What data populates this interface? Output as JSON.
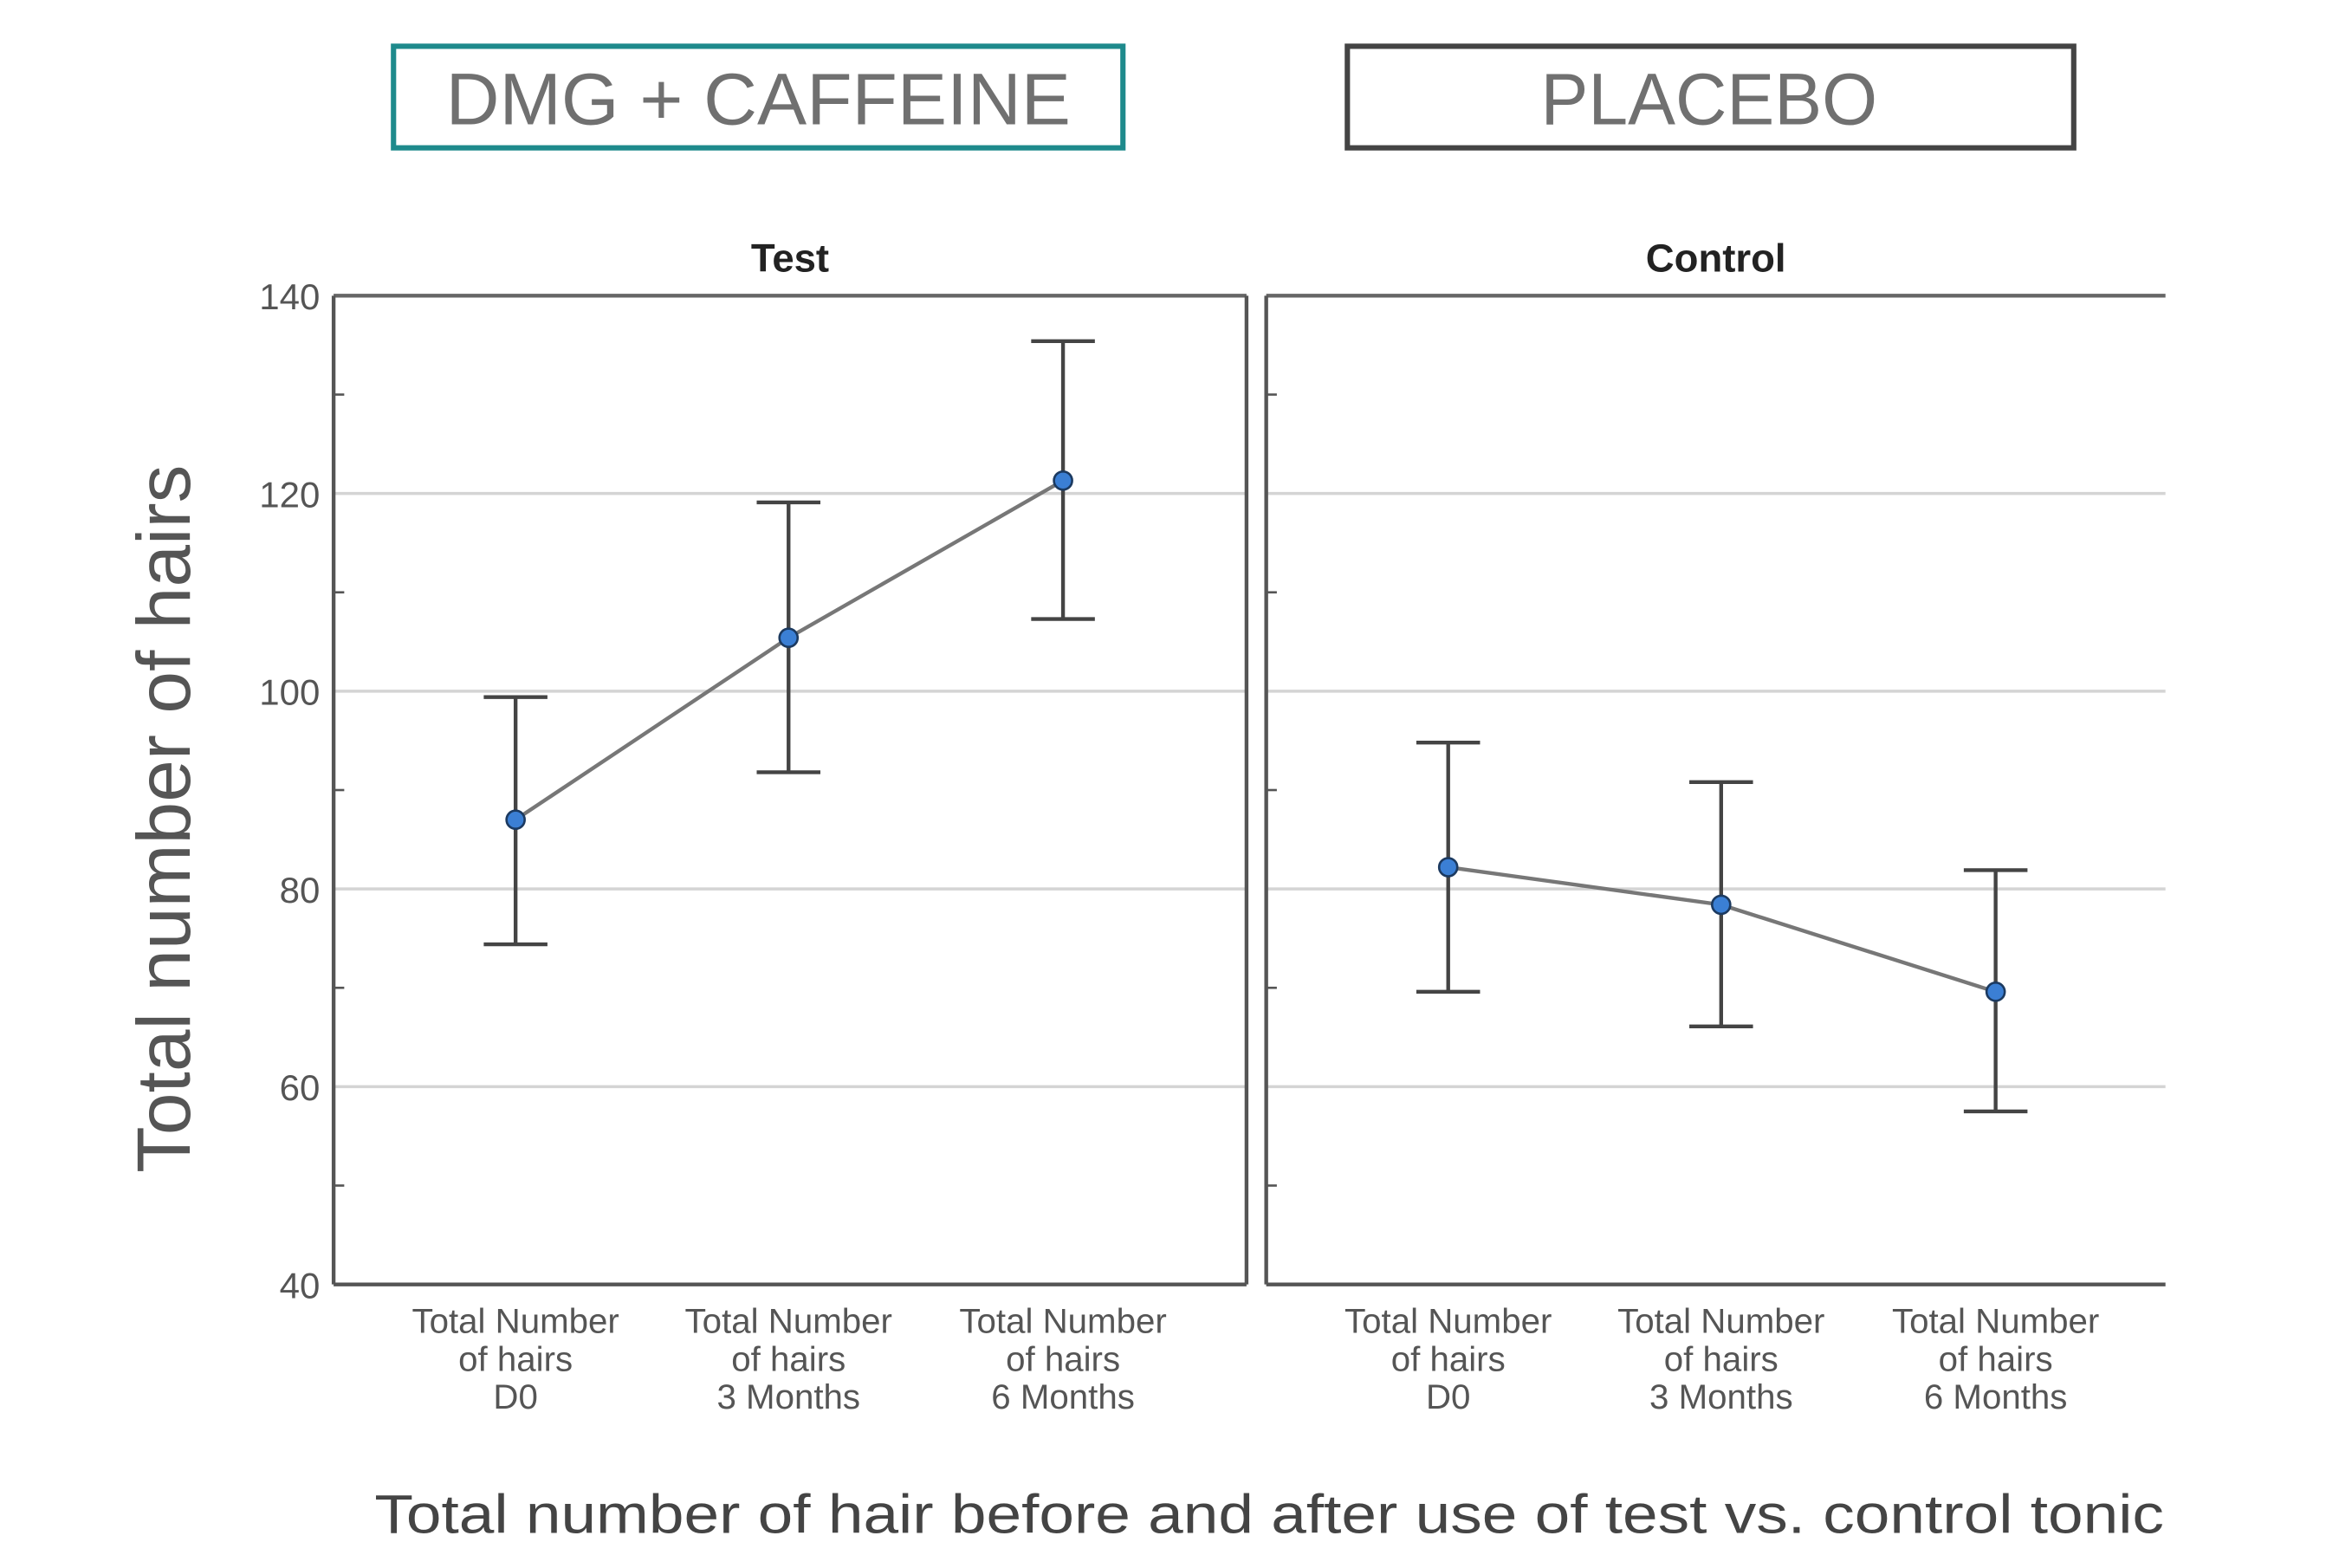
{
  "header": {
    "test_label": "DMG + CAFFEINE",
    "control_label": "PLACEBO",
    "test_color": "#1e8a8c",
    "control_color": "#444444"
  },
  "chart_data": {
    "type": "line",
    "ylabel": "Total number of hairs",
    "xlabel": "Total number of hair before and after use of test vs. control tonic",
    "ylim": [
      40,
      140
    ],
    "yticks": [
      40,
      60,
      80,
      100,
      120,
      140
    ],
    "grid": true,
    "categories": [
      [
        "Total Number",
        "of hairs",
        "D0"
      ],
      [
        "Total Number",
        "of hairs",
        "3 Months"
      ],
      [
        "Total Number",
        "of hairs",
        "6 Months"
      ]
    ],
    "marker_color": "#3b7fd4",
    "panels": [
      {
        "title": "Test",
        "means": [
          87.0,
          105.4,
          121.3
        ],
        "upper": [
          99.4,
          119.1,
          135.4
        ],
        "lower": [
          74.4,
          91.8,
          107.3
        ]
      },
      {
        "title": "Control",
        "means": [
          82.2,
          78.4,
          69.6
        ],
        "upper": [
          94.8,
          90.8,
          81.9
        ],
        "lower": [
          69.6,
          66.1,
          57.5
        ]
      }
    ]
  }
}
